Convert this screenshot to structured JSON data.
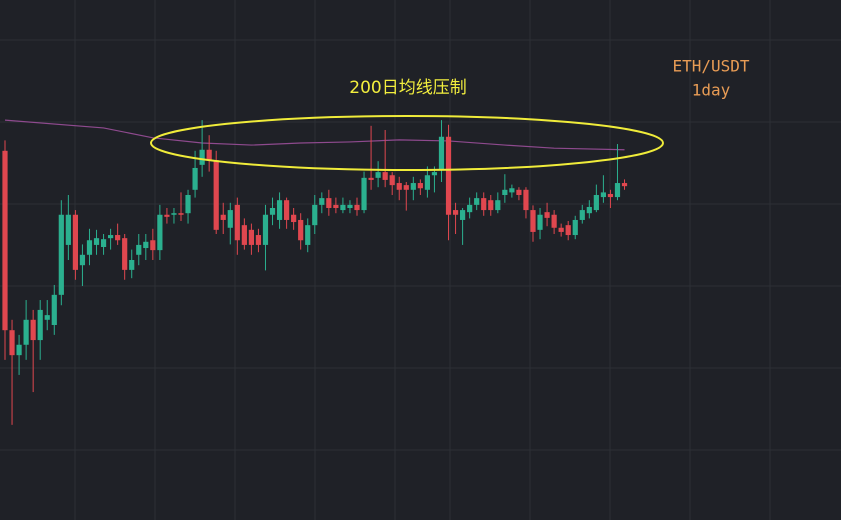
{
  "chart_data": {
    "type": "candlestick",
    "title": "ETH/USDT",
    "subtitle": "1day",
    "annotation": "200日均线压制",
    "ylim": [
      0,
      100
    ],
    "up_color": "#2bb08f",
    "down_color": "#e0474f",
    "open": [
      71,
      36.5,
      31.7,
      33.7,
      38.5,
      34.6,
      38.5,
      37.5,
      43.3,
      52.9,
      58.7,
      49,
      51,
      52.9,
      52.5,
      54.2,
      54.8,
      54.2,
      48.1,
      51,
      52.3,
      53.8,
      51.9,
      58.7,
      58.7,
      59,
      59,
      63.5,
      68.3,
      71.2,
      69.2,
      58.7,
      56.2,
      60.6,
      56.7,
      55.8,
      54.8,
      52.9,
      58.7,
      57.7,
      61.5,
      58.7,
      57.7,
      52.9,
      56.7,
      60.6,
      61.9,
      60.6,
      59.6,
      60,
      60.6,
      59.6,
      65.8,
      65.8,
      66.9,
      66.3,
      64.8,
      64.4,
      63.5,
      64.8,
      63.5,
      66.3,
      67.3,
      73.7,
      59.6,
      57.7,
      59.2,
      60.6,
      61.9,
      61.5,
      59.6,
      62.5,
      63,
      63.5,
      63.5,
      59.6,
      55.8,
      59.2,
      58.7,
      56.2,
      56.7,
      54.8,
      57.7,
      59,
      59.6,
      62.1,
      62.7,
      62.1,
      64.8
    ],
    "high": [
      73,
      38.5,
      35.6,
      42.3,
      40.4,
      42.3,
      42.3,
      45.2,
      61.5,
      62.5,
      59.6,
      53,
      56,
      55.8,
      55,
      56,
      57,
      55,
      52,
      55,
      55,
      56,
      60.6,
      60,
      60,
      63,
      63.5,
      71,
      76.9,
      74,
      71,
      61,
      61,
      62,
      58,
      57,
      56,
      60.6,
      62,
      63,
      62,
      60,
      59,
      58,
      62.5,
      63,
      63.5,
      62,
      62,
      61.5,
      62,
      67,
      75.8,
      69,
      75,
      66.9,
      66,
      65,
      66,
      65.5,
      68,
      68,
      76.9,
      76,
      61,
      60,
      62,
      63,
      63,
      62.5,
      63,
      66.5,
      64.5,
      64,
      64,
      60.5,
      60,
      61,
      59.6,
      57,
      57.5,
      58.5,
      60.6,
      61.5,
      64.5,
      66.3,
      63.5,
      72.3,
      65.5
    ],
    "low": [
      30.8,
      18.3,
      27.9,
      30.8,
      24.6,
      30.8,
      36.5,
      35.6,
      41.3,
      50,
      46.2,
      45,
      49,
      51,
      51,
      52,
      52.9,
      46.2,
      46.5,
      49,
      50,
      50,
      50,
      57,
      57,
      57.5,
      57,
      62,
      66,
      67,
      55,
      55,
      53,
      51,
      52,
      51,
      51.5,
      48,
      56.7,
      56,
      56,
      55.8,
      52,
      51.5,
      55,
      59,
      58.5,
      59,
      59,
      59,
      58.5,
      59,
      63.5,
      64,
      64,
      62.5,
      61.5,
      59.5,
      61.5,
      62.5,
      62,
      63,
      65,
      53.8,
      55,
      52.9,
      58,
      59.6,
      58.5,
      58.5,
      59,
      61,
      62,
      61.5,
      58,
      53.5,
      54,
      56.5,
      55,
      54.5,
      53.8,
      54,
      57,
      58,
      59.2,
      61,
      60,
      61.5,
      63.5
    ],
    "close": [
      36.5,
      31.7,
      33.7,
      38.5,
      34.6,
      40.4,
      39.4,
      43.3,
      58.7,
      58.7,
      48.1,
      51,
      53.8,
      54.2,
      54,
      54.8,
      53.8,
      48.1,
      50,
      52.9,
      53.5,
      51.9,
      58.7,
      58.3,
      59,
      58.7,
      62.5,
      67.7,
      71.2,
      69.2,
      55.8,
      57.7,
      59.6,
      53.8,
      52.9,
      52.9,
      52.9,
      58.7,
      60,
      61.5,
      57.7,
      57.3,
      53.8,
      56.7,
      60.6,
      61.9,
      60,
      60,
      60.6,
      60.6,
      59.6,
      65.8,
      65.4,
      66.9,
      65.4,
      64.4,
      63.5,
      63.5,
      64.8,
      63.8,
      66.3,
      66.9,
      73.7,
      58.7,
      58.7,
      59.6,
      60.6,
      61.9,
      59.6,
      59.6,
      61.5,
      63.5,
      63.8,
      62.5,
      59.6,
      55.4,
      58.7,
      58.1,
      56.2,
      55.4,
      54.8,
      57.7,
      59.6,
      60.2,
      62.5,
      63,
      62.1,
      64.8,
      64.2
    ],
    "ma": {
      "color": "#8e4a8e",
      "x": [
        0,
        14,
        21,
        28,
        35,
        42,
        49,
        56,
        63,
        71,
        78,
        88
      ],
      "values": [
        76.9,
        75.4,
        73.5,
        72.5,
        72.1,
        72.5,
        72.7,
        73.1,
        72.9,
        72.1,
        71.5,
        71.2
      ]
    }
  }
}
